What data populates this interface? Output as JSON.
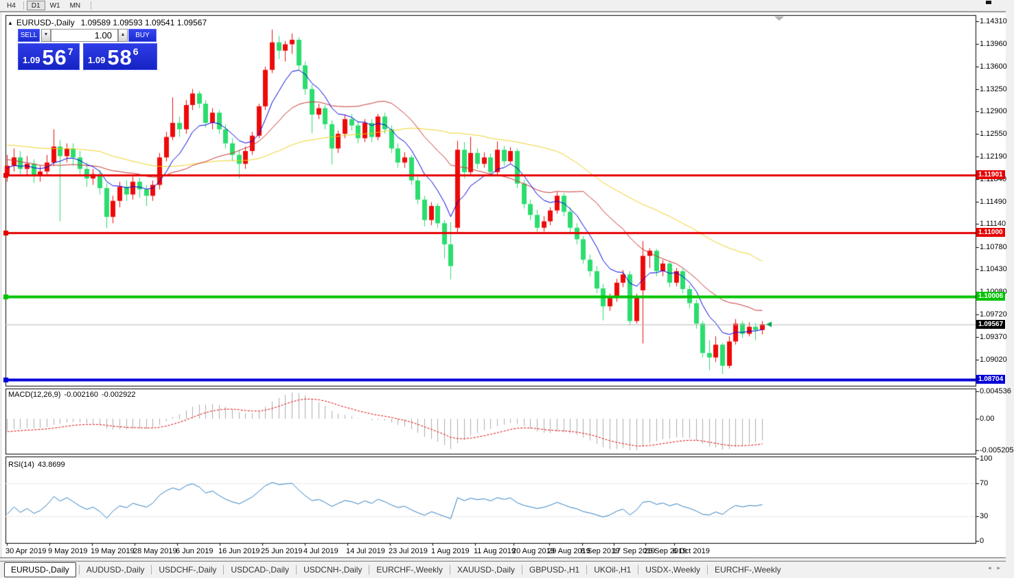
{
  "toolbar": {
    "timeframes": [
      {
        "label": "H4",
        "active": false
      },
      {
        "label": "D1",
        "active": true
      },
      {
        "label": "W1",
        "active": false
      },
      {
        "label": "MN",
        "active": false
      }
    ]
  },
  "chart_header": {
    "symbol": "EURUSD-,Daily",
    "ohlc": "1.09589 1.09593 1.09541 1.09567"
  },
  "trade_panel": {
    "sell_label": "SELL",
    "buy_label": "BUY",
    "volume": "1.00",
    "sell_price": {
      "prefix": "1.09",
      "big": "56",
      "sup": "7"
    },
    "buy_price": {
      "prefix": "1.09",
      "big": "58",
      "sup": "6"
    }
  },
  "price_axis": {
    "ticks": [
      "1.14310",
      "1.13960",
      "1.13600",
      "1.13250",
      "1.12900",
      "1.12550",
      "1.12190",
      "1.11840",
      "1.11490",
      "1.11140",
      "1.10780",
      "1.10430",
      "1.10080",
      "1.09720",
      "1.09370",
      "1.09020"
    ],
    "badges": [
      {
        "text": "1.11901",
        "color": "#e60000"
      },
      {
        "text": "1.11000",
        "color": "#e60000"
      },
      {
        "text": "1.10006",
        "color": "#00c300"
      },
      {
        "text": "1.09567",
        "color": "#000000"
      },
      {
        "text": "1.08704",
        "color": "#0000d8"
      }
    ]
  },
  "macd_panel": {
    "title": "MACD(12,26,9)",
    "main_value": "-0.002160",
    "signal_value": "-0.002922",
    "axis_labels": [
      {
        "text": "0.004536",
        "value": 0.004536
      },
      {
        "text": "0.00",
        "value": 0.0
      },
      {
        "text": "-0.005205",
        "value": -0.005205
      }
    ]
  },
  "rsi_panel": {
    "title": "RSI(14)",
    "value": "43.8699",
    "axis_labels": [
      {
        "text": "100",
        "value": 100
      },
      {
        "text": "70",
        "value": 70
      },
      {
        "text": "30",
        "value": 30
      },
      {
        "text": "0",
        "value": 0
      }
    ]
  },
  "date_axis": {
    "labels": [
      "30 Apr 2019",
      "9 May 2019",
      "19 May 2019",
      "28 May 2019",
      "6 Jun 2019",
      "16 Jun 2019",
      "25 Jun 2019",
      "4 Jul 2019",
      "14 Jul 2019",
      "23 Jul 2019",
      "1 Aug 2019",
      "11 Aug 2019",
      "20 Aug 2019",
      "29 Aug 2019",
      "8 Sep 2019",
      "17 Sep 2019",
      "26 Sep 2019",
      "6 Oct 2019"
    ],
    "x": [
      8,
      70,
      132,
      194,
      256,
      318,
      380,
      442,
      504,
      566,
      628,
      690,
      746,
      798,
      846,
      892,
      938,
      980
    ]
  },
  "tabs": {
    "items": [
      "EURUSD-,Daily",
      "AUDUSD-,Daily",
      "USDCHF-,Daily",
      "USDCAD-,Daily",
      "USDCNH-,Daily",
      "EURCHF-,Weekly",
      "XAUUSD-,Daily",
      "GBPUSD-,H1",
      "UKOil-,H1",
      "USDX-,Weekly",
      "EURCHF-,Weekly"
    ],
    "active_index": 0,
    "nav_left": "◂",
    "nav_right": "▸"
  },
  "chart_data": {
    "type": "candlestick",
    "symbol": "EURUSD-",
    "timeframe": "Daily",
    "up_color": "#ee0a0a",
    "down_color": "#2bdd6e",
    "current_price": 1.09567,
    "price_range_top": 1.1431,
    "price_range_bottom": 1.08704,
    "horizontal_lines": [
      {
        "price": 1.11901,
        "color": "#e60000",
        "width": 3
      },
      {
        "price": 1.11,
        "color": "#e60000",
        "width": 3
      },
      {
        "price": 1.10006,
        "color": "#00c300",
        "width": 4
      },
      {
        "price": 1.08704,
        "color": "#0000d8",
        "width": 4
      }
    ],
    "moving_averages": [
      {
        "period": 45,
        "type": "sma",
        "color": "#efd321"
      },
      {
        "period": 20,
        "type": "sma",
        "color": "#c83232"
      },
      {
        "period": 8,
        "type": "ema",
        "color": "#0000e0"
      }
    ],
    "macd": {
      "fast": 12,
      "slow": 26,
      "signal": 9,
      "axis_max": 0.004536,
      "axis_min": -0.005205,
      "histogram_color": "#adadad",
      "signal_color": "#e00000"
    },
    "rsi": {
      "period": 14,
      "levels": [
        30,
        70
      ],
      "line_color": "#2e7fc2",
      "level_color": "#bcbcbc"
    },
    "indicator_warmup_closes": [
      1.131,
      1.13,
      1.1293,
      1.1286,
      1.129,
      1.1279,
      1.1271,
      1.1264,
      1.1269,
      1.1257,
      1.1249,
      1.1241,
      1.1245,
      1.1237,
      1.1229,
      1.1234,
      1.1227,
      1.1219,
      1.1224,
      1.1215,
      1.1209,
      1.1213,
      1.1205,
      1.1199,
      1.1203,
      1.1197,
      1.1201,
      1.1195,
      1.1199,
      1.1193
    ],
    "candles": [
      [
        1.119,
        1.1222,
        1.118,
        1.1205
      ],
      [
        1.1205,
        1.1232,
        1.1196,
        1.1218
      ],
      [
        1.1218,
        1.1228,
        1.1192,
        1.12
      ],
      [
        1.12,
        1.122,
        1.119,
        1.1208
      ],
      [
        1.1208,
        1.1215,
        1.1178,
        1.119
      ],
      [
        1.119,
        1.1205,
        1.118,
        1.1196
      ],
      [
        1.1196,
        1.1222,
        1.119,
        1.121
      ],
      [
        1.121,
        1.1262,
        1.1205,
        1.1235
      ],
      [
        1.1235,
        1.1245,
        1.1118,
        1.122
      ],
      [
        1.122,
        1.124,
        1.121,
        1.1232
      ],
      [
        1.1232,
        1.124,
        1.1205,
        1.1218
      ],
      [
        1.1218,
        1.1228,
        1.1192,
        1.12
      ],
      [
        1.12,
        1.121,
        1.1172,
        1.1185
      ],
      [
        1.1185,
        1.12,
        1.1175,
        1.1192
      ],
      [
        1.1192,
        1.1198,
        1.116,
        1.117
      ],
      [
        1.117,
        1.1178,
        1.1107,
        1.1125
      ],
      [
        1.1125,
        1.1158,
        1.1115,
        1.115
      ],
      [
        1.115,
        1.118,
        1.114,
        1.1172
      ],
      [
        1.1172,
        1.1182,
        1.115,
        1.116
      ],
      [
        1.116,
        1.1188,
        1.1152,
        1.118
      ],
      [
        1.118,
        1.1186,
        1.1155,
        1.1168
      ],
      [
        1.1168,
        1.1175,
        1.1142,
        1.1158
      ],
      [
        1.1158,
        1.1182,
        1.115,
        1.1175
      ],
      [
        1.1175,
        1.1225,
        1.1168,
        1.1218
      ],
      [
        1.1218,
        1.1258,
        1.1212,
        1.125
      ],
      [
        1.125,
        1.1312,
        1.1245,
        1.1272
      ],
      [
        1.1272,
        1.1282,
        1.125,
        1.1262
      ],
      [
        1.1262,
        1.1308,
        1.1255,
        1.13
      ],
      [
        1.13,
        1.1325,
        1.1292,
        1.1318
      ],
      [
        1.1318,
        1.1322,
        1.1295,
        1.1302
      ],
      [
        1.1302,
        1.1308,
        1.1265,
        1.1272
      ],
      [
        1.1272,
        1.1295,
        1.1262,
        1.1288
      ],
      [
        1.1288,
        1.1292,
        1.1255,
        1.1262
      ],
      [
        1.1262,
        1.127,
        1.1232,
        1.124
      ],
      [
        1.124,
        1.1248,
        1.1212,
        1.1222
      ],
      [
        1.1222,
        1.123,
        1.1185,
        1.1208
      ],
      [
        1.1208,
        1.1235,
        1.12,
        1.1228
      ],
      [
        1.1228,
        1.1258,
        1.1222,
        1.1252
      ],
      [
        1.1252,
        1.1302,
        1.1248,
        1.1298
      ],
      [
        1.1298,
        1.136,
        1.1292,
        1.1355
      ],
      [
        1.1355,
        1.1418,
        1.135,
        1.1398
      ],
      [
        1.1398,
        1.1408,
        1.1372,
        1.1385
      ],
      [
        1.1385,
        1.14,
        1.1368,
        1.1395
      ],
      [
        1.1395,
        1.1412,
        1.138,
        1.1402
      ],
      [
        1.1402,
        1.1406,
        1.1355,
        1.1362
      ],
      [
        1.1362,
        1.1368,
        1.1316,
        1.1325
      ],
      [
        1.1325,
        1.1332,
        1.1256,
        1.1285
      ],
      [
        1.1285,
        1.1302,
        1.1278,
        1.1295
      ],
      [
        1.1295,
        1.13,
        1.1262,
        1.127
      ],
      [
        1.127,
        1.1276,
        1.1207,
        1.1232
      ],
      [
        1.1232,
        1.126,
        1.1225,
        1.1255
      ],
      [
        1.1255,
        1.1285,
        1.1248,
        1.1278
      ],
      [
        1.1278,
        1.1286,
        1.126,
        1.1268
      ],
      [
        1.1268,
        1.1275,
        1.124,
        1.1248
      ],
      [
        1.1248,
        1.1278,
        1.1242,
        1.1272
      ],
      [
        1.1272,
        1.1278,
        1.1242,
        1.125
      ],
      [
        1.125,
        1.1286,
        1.1245,
        1.1282
      ],
      [
        1.1282,
        1.1288,
        1.1255,
        1.1262
      ],
      [
        1.1262,
        1.1268,
        1.1225,
        1.1232
      ],
      [
        1.1232,
        1.124,
        1.1202,
        1.121
      ],
      [
        1.121,
        1.1226,
        1.1202,
        1.1218
      ],
      [
        1.1218,
        1.1222,
        1.1175,
        1.1182
      ],
      [
        1.1182,
        1.1188,
        1.1145,
        1.1152
      ],
      [
        1.1152,
        1.1158,
        1.111,
        1.112
      ],
      [
        1.112,
        1.1148,
        1.1112,
        1.1142
      ],
      [
        1.1142,
        1.1146,
        1.1108,
        1.1115
      ],
      [
        1.1115,
        1.112,
        1.106,
        1.1082
      ],
      [
        1.1082,
        1.1117,
        1.1027,
        1.1048
      ],
      [
        1.1108,
        1.1244,
        1.11,
        1.123
      ],
      [
        1.123,
        1.1242,
        1.1185,
        1.1195
      ],
      [
        1.1195,
        1.125,
        1.119,
        1.1225
      ],
      [
        1.1225,
        1.1232,
        1.12,
        1.1208
      ],
      [
        1.1208,
        1.1226,
        1.1202,
        1.1218
      ],
      [
        1.1218,
        1.1224,
        1.1188,
        1.1195
      ],
      [
        1.1195,
        1.1243,
        1.119,
        1.123
      ],
      [
        1.123,
        1.1236,
        1.1205,
        1.1212
      ],
      [
        1.1212,
        1.1234,
        1.1208,
        1.1228
      ],
      [
        1.1228,
        1.1232,
        1.117,
        1.1177
      ],
      [
        1.1177,
        1.1183,
        1.1138,
        1.1145
      ],
      [
        1.1145,
        1.1152,
        1.112,
        1.1128
      ],
      [
        1.1128,
        1.1136,
        1.1102,
        1.1108
      ],
      [
        1.1108,
        1.1126,
        1.1102,
        1.1118
      ],
      [
        1.1118,
        1.114,
        1.1112,
        1.1135
      ],
      [
        1.1135,
        1.1164,
        1.113,
        1.1158
      ],
      [
        1.1158,
        1.1162,
        1.1126,
        1.1133
      ],
      [
        1.1133,
        1.114,
        1.11,
        1.1108
      ],
      [
        1.1108,
        1.1115,
        1.1082,
        1.109
      ],
      [
        1.109,
        1.1095,
        1.1052,
        1.1058
      ],
      [
        1.1058,
        1.1066,
        1.1032,
        1.104
      ],
      [
        1.104,
        1.1048,
        1.1006,
        1.1013
      ],
      [
        1.1013,
        1.102,
        1.0963,
        1.0985
      ],
      [
        1.0985,
        1.1005,
        1.0978,
        1.0998
      ],
      [
        1.0998,
        1.1028,
        1.0992,
        1.1022
      ],
      [
        1.1022,
        1.1042,
        1.1015,
        1.1035
      ],
      [
        1.1035,
        1.104,
        1.0955,
        1.0962
      ],
      [
        1.0962,
        1.1005,
        1.0958,
        1.1
      ],
      [
        1.101,
        1.1087,
        1.0927,
        1.1064
      ],
      [
        1.1064,
        1.1076,
        1.1045,
        1.1072
      ],
      [
        1.1072,
        1.1075,
        1.1032,
        1.104
      ],
      [
        1.104,
        1.1058,
        1.1032,
        1.1052
      ],
      [
        1.1052,
        1.1056,
        1.1015,
        1.1022
      ],
      [
        1.1022,
        1.1045,
        1.1016,
        1.104
      ],
      [
        1.104,
        1.1044,
        1.1005,
        1.1012
      ],
      [
        1.1012,
        1.1018,
        1.0982,
        1.099
      ],
      [
        1.099,
        1.0996,
        1.095,
        1.0958
      ],
      [
        1.0958,
        1.0962,
        1.0905,
        1.0912
      ],
      [
        1.0912,
        1.0932,
        1.0885,
        1.0905
      ],
      [
        1.0905,
        1.0938,
        1.0898,
        1.0925
      ],
      [
        1.0925,
        1.0928,
        1.0879,
        1.0892
      ],
      [
        1.0892,
        1.0938,
        1.0888,
        1.093
      ],
      [
        1.093,
        1.0965,
        1.0925,
        1.0958
      ],
      [
        1.0958,
        1.0962,
        1.0936,
        1.0942
      ],
      [
        1.0942,
        1.096,
        1.0938,
        1.0953
      ],
      [
        1.0953,
        1.0959,
        1.0932,
        1.0948
      ],
      [
        1.0948,
        1.0962,
        1.0941,
        1.0957
      ]
    ]
  }
}
